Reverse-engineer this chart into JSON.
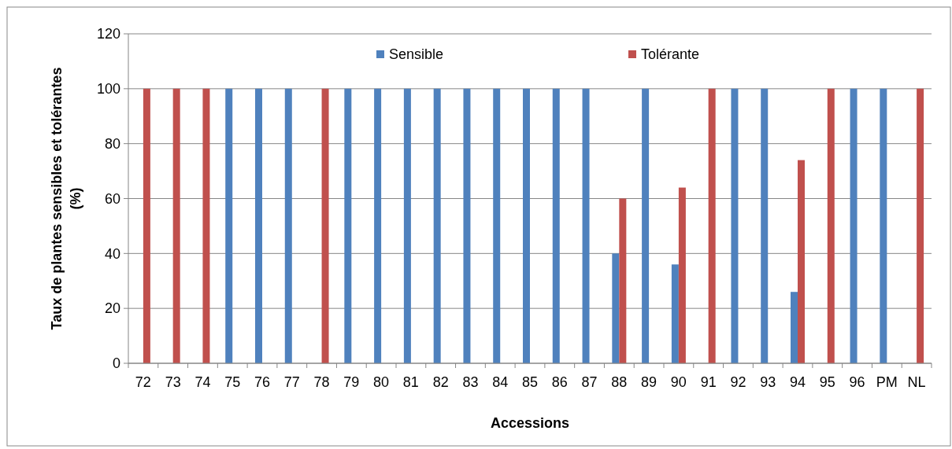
{
  "chart_data": {
    "type": "bar",
    "xlabel": "Accessions",
    "ylabel": "Taux de plantes sensibles et tolérantes (%)",
    "categories": [
      "72",
      "73",
      "74",
      "75",
      "76",
      "77",
      "78",
      "79",
      "80",
      "81",
      "82",
      "83",
      "84",
      "85",
      "86",
      "87",
      "88",
      "89",
      "90",
      "91",
      "92",
      "93",
      "94",
      "95",
      "96",
      "PM",
      "NL"
    ],
    "series": [
      {
        "name": "Sensible",
        "color": "#4f81bd",
        "values": [
          0,
          0,
          0,
          100,
          100,
          100,
          0,
          100,
          100,
          100,
          100,
          100,
          100,
          100,
          100,
          100,
          40,
          100,
          36,
          0,
          100,
          100,
          26,
          0,
          100,
          100,
          0
        ]
      },
      {
        "name": "Tolérante",
        "color": "#c0504d",
        "values": [
          100,
          100,
          100,
          0,
          0,
          0,
          100,
          0,
          0,
          0,
          0,
          0,
          0,
          0,
          0,
          0,
          60,
          0,
          64,
          100,
          0,
          0,
          74,
          100,
          0,
          0,
          100
        ]
      }
    ],
    "ylim": [
      0,
      120
    ],
    "yticks": [
      0,
      20,
      40,
      60,
      80,
      100,
      120
    ],
    "grid": "y",
    "legend": "top"
  }
}
